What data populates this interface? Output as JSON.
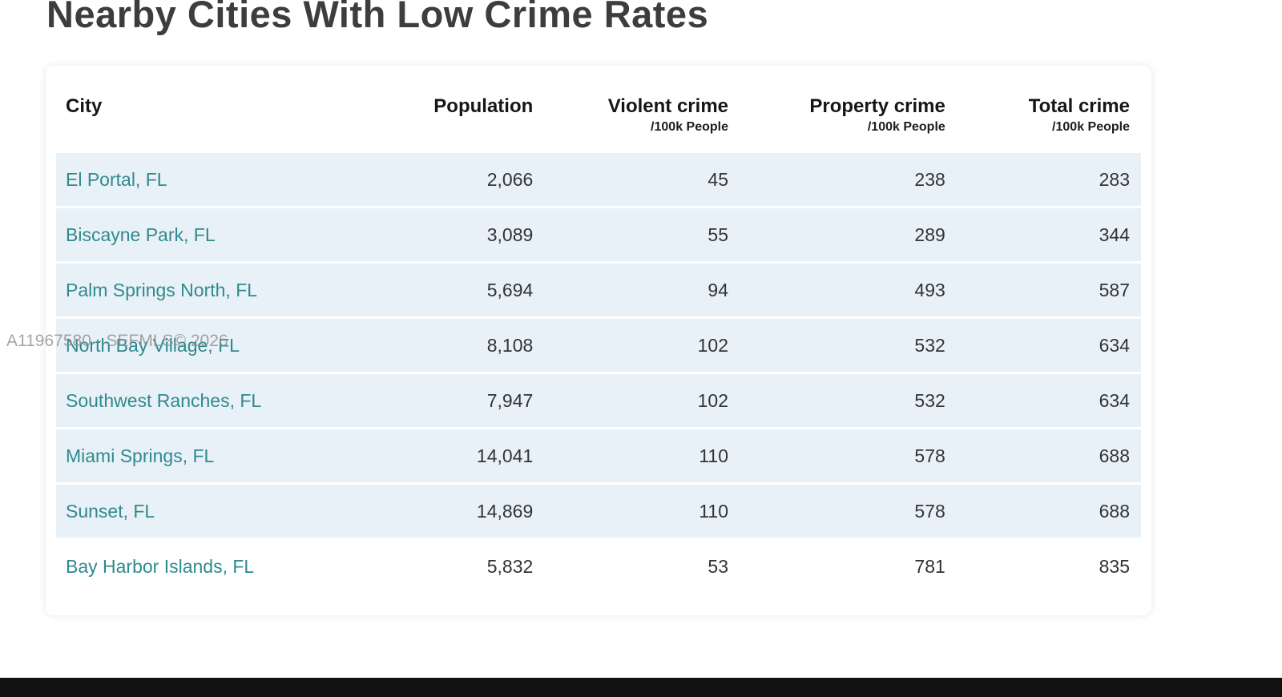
{
  "title": "Nearby Cities With Low Crime Rates",
  "watermark": "A11967580 - SEFMLS© 2026",
  "colors": {
    "city_link": "#2f8a8d",
    "row_background": "#e9f1f8",
    "title_text": "#3d3d3d",
    "bottom_bar": "#111111"
  },
  "table": {
    "columns": [
      {
        "label": "City",
        "sublabel": ""
      },
      {
        "label": "Population",
        "sublabel": ""
      },
      {
        "label": "Violent crime",
        "sublabel": "/100k People"
      },
      {
        "label": "Property crime",
        "sublabel": "/100k People"
      },
      {
        "label": "Total crime",
        "sublabel": "/100k People"
      }
    ],
    "rows": [
      {
        "city": "El Portal, FL",
        "population": "2,066",
        "violent": "45",
        "property": "238",
        "total": "283"
      },
      {
        "city": "Biscayne Park, FL",
        "population": "3,089",
        "violent": "55",
        "property": "289",
        "total": "344"
      },
      {
        "city": "Palm Springs North, FL",
        "population": "5,694",
        "violent": "94",
        "property": "493",
        "total": "587"
      },
      {
        "city": "North Bay Village, FL",
        "population": "8,108",
        "violent": "102",
        "property": "532",
        "total": "634"
      },
      {
        "city": "Southwest Ranches, FL",
        "population": "7,947",
        "violent": "102",
        "property": "532",
        "total": "634"
      },
      {
        "city": "Miami Springs, FL",
        "population": "14,041",
        "violent": "110",
        "property": "578",
        "total": "688"
      },
      {
        "city": "Sunset, FL",
        "population": "14,869",
        "violent": "110",
        "property": "578",
        "total": "688"
      },
      {
        "city": "Bay Harbor Islands, FL",
        "population": "5,832",
        "violent": "53",
        "property": "781",
        "total": "835"
      }
    ]
  }
}
